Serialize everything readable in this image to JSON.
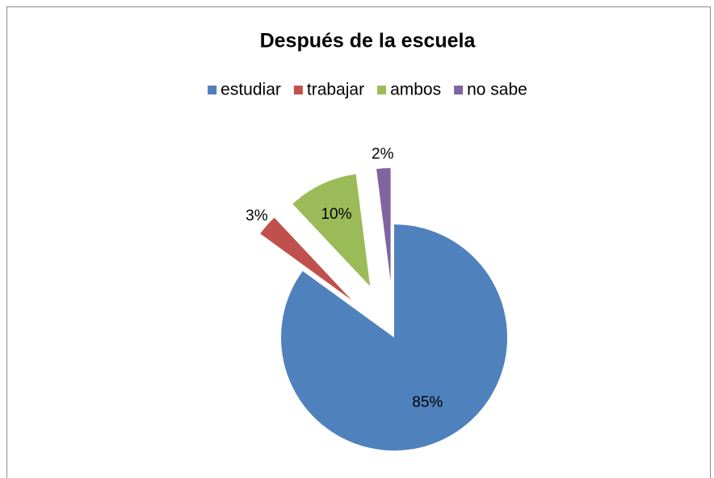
{
  "chart_data": {
    "type": "pie",
    "title": "Después de la escuela",
    "categories": [
      "estudiar",
      "trabajar",
      "ambos",
      "no sabe"
    ],
    "values": [
      85,
      3,
      10,
      2
    ],
    "value_labels": [
      "85%",
      "3%",
      "10%",
      "2%"
    ],
    "colors": [
      "#4f81bd",
      "#c0504d",
      "#9bbb59",
      "#8064a2"
    ],
    "legend": "top"
  }
}
